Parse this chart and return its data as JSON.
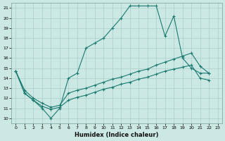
{
  "xlabel": "Humidex (Indice chaleur)",
  "bg_color": "#cce8e4",
  "grid_color": "#aacfcb",
  "line_color": "#1a7a6e",
  "xlim": [
    -0.5,
    23.5
  ],
  "ylim": [
    9.5,
    21.5
  ],
  "xticks": [
    0,
    1,
    2,
    3,
    4,
    5,
    6,
    7,
    8,
    9,
    10,
    11,
    12,
    13,
    14,
    15,
    16,
    17,
    18,
    19,
    20,
    21,
    22,
    23
  ],
  "yticks": [
    10,
    11,
    12,
    13,
    14,
    15,
    16,
    17,
    18,
    19,
    20,
    21
  ],
  "line1_x": [
    0,
    1,
    2,
    3,
    4,
    5,
    6,
    7,
    8,
    9,
    10,
    11,
    12,
    13,
    14,
    15,
    16,
    17,
    18,
    19,
    20,
    21,
    22
  ],
  "line1_y": [
    14.7,
    12.5,
    11.8,
    11.0,
    10.0,
    11.0,
    14.0,
    14.5,
    17.0,
    17.5,
    18.0,
    19.0,
    20.0,
    21.2,
    21.2,
    21.2,
    21.2,
    18.2,
    20.2,
    16.0,
    15.0,
    14.5,
    14.5
  ],
  "line2_x": [
    0,
    1,
    2,
    3,
    4,
    5,
    6,
    7,
    8,
    9,
    10,
    11,
    12,
    13,
    14,
    15,
    16,
    17,
    18,
    19,
    20,
    21,
    22
  ],
  "line2_y": [
    14.7,
    12.8,
    12.0,
    11.5,
    11.1,
    11.3,
    12.5,
    12.8,
    13.0,
    13.3,
    13.6,
    13.9,
    14.1,
    14.4,
    14.7,
    14.9,
    15.3,
    15.6,
    15.9,
    16.2,
    16.5,
    15.2,
    14.5
  ],
  "line3_x": [
    0,
    1,
    2,
    3,
    4,
    5,
    6,
    7,
    8,
    9,
    10,
    11,
    12,
    13,
    14,
    15,
    16,
    17,
    18,
    19,
    20,
    21,
    22
  ],
  "line3_y": [
    14.7,
    12.5,
    11.8,
    11.2,
    10.9,
    11.1,
    11.8,
    12.1,
    12.3,
    12.6,
    12.9,
    13.1,
    13.4,
    13.6,
    13.9,
    14.1,
    14.4,
    14.7,
    14.9,
    15.1,
    15.3,
    14.0,
    13.8
  ]
}
